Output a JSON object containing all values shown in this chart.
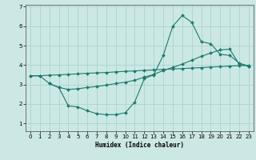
{
  "xlabel": "Humidex (Indice chaleur)",
  "bg_color": "#cce8e4",
  "grid_color": "#aad4d0",
  "line_color": "#1a7a6e",
  "ylim": [
    0.6,
    7.1
  ],
  "xlim": [
    -0.5,
    23.5
  ],
  "yticks": [
    1,
    2,
    3,
    4,
    5,
    6,
    7
  ],
  "xticks": [
    0,
    1,
    2,
    3,
    4,
    5,
    6,
    7,
    8,
    9,
    10,
    11,
    12,
    13,
    14,
    15,
    16,
    17,
    18,
    19,
    20,
    21,
    22,
    23
  ],
  "line1_x": [
    0,
    1,
    2,
    3,
    4,
    5,
    6,
    7,
    8,
    9,
    10,
    11,
    12,
    13,
    14,
    15,
    16,
    17,
    18,
    19,
    20,
    21,
    22,
    23
  ],
  "line1_y": [
    3.45,
    3.45,
    3.48,
    3.5,
    3.52,
    3.55,
    3.58,
    3.6,
    3.62,
    3.65,
    3.68,
    3.7,
    3.73,
    3.75,
    3.78,
    3.8,
    3.82,
    3.85,
    3.87,
    3.9,
    3.92,
    3.95,
    3.97,
    3.98
  ],
  "line2_x": [
    0,
    1,
    2,
    3,
    4,
    5,
    6,
    7,
    8,
    9,
    10,
    11,
    12,
    13,
    14,
    15,
    16,
    17,
    18,
    19,
    20,
    21,
    22,
    23
  ],
  "line2_y": [
    3.45,
    3.45,
    3.05,
    2.85,
    1.9,
    1.85,
    1.65,
    1.5,
    1.45,
    1.45,
    1.55,
    2.1,
    3.3,
    3.5,
    4.5,
    6.0,
    6.55,
    6.2,
    5.2,
    5.1,
    4.55,
    4.5,
    4.1,
    3.95
  ],
  "line3_x": [
    2,
    3,
    4,
    5,
    6,
    7,
    8,
    9,
    10,
    11,
    12,
    13,
    14,
    15,
    16,
    17,
    18,
    19,
    20,
    21,
    22,
    23
  ],
  "line3_y": [
    3.05,
    2.85,
    2.75,
    2.78,
    2.85,
    2.9,
    2.97,
    3.05,
    3.12,
    3.22,
    3.38,
    3.52,
    3.72,
    3.88,
    4.05,
    4.25,
    4.45,
    4.62,
    4.78,
    4.82,
    4.05,
    3.95
  ]
}
